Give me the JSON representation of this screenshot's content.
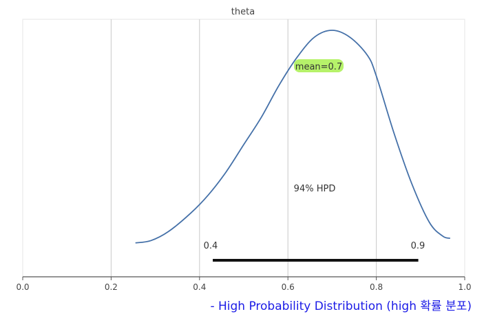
{
  "caption": "- High Probability Distribution (high 확률 분포)",
  "chart_data": {
    "type": "area",
    "title": "theta",
    "xlim": [
      0.0,
      1.0
    ],
    "xticks": [
      "0.0",
      "0.2",
      "0.4",
      "0.6",
      "0.8",
      "1.0"
    ],
    "grid": true,
    "series": [
      {
        "x": [
          0.255,
          0.29,
          0.33,
          0.38,
          0.42,
          0.46,
          0.5,
          0.54,
          0.58,
          0.62,
          0.66,
          0.7,
          0.74,
          0.78,
          0.8,
          0.84,
          0.88,
          0.92,
          0.95,
          0.967
        ],
        "y": [
          0.07,
          0.08,
          0.12,
          0.2,
          0.28,
          0.38,
          0.5,
          0.62,
          0.76,
          0.88,
          0.97,
          1.0,
          0.97,
          0.89,
          0.8,
          0.55,
          0.33,
          0.16,
          0.1,
          0.09
        ],
        "color": "#4470a8"
      }
    ],
    "mean_label": "mean=0.7",
    "mean_color": "#b6f26a",
    "hpd": {
      "label": "94% HPD",
      "low": 0.43,
      "high": 0.895,
      "low_label": "0.4",
      "high_label": "0.9"
    }
  }
}
